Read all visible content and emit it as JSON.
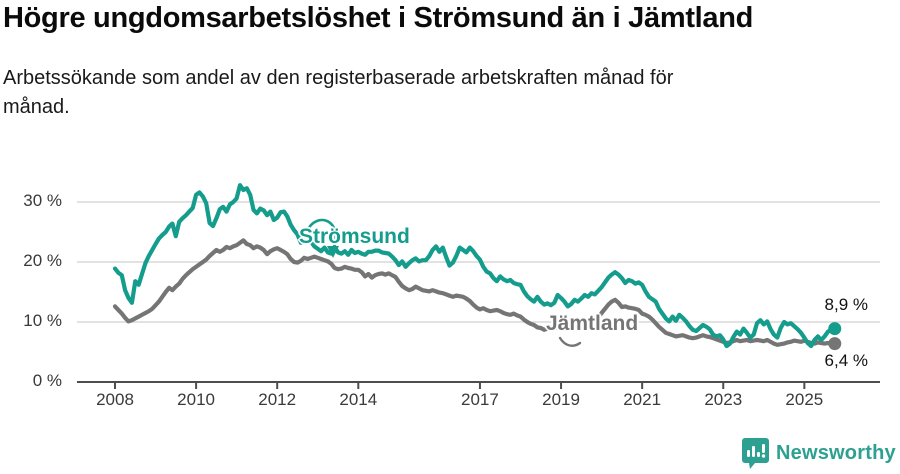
{
  "header": {
    "title": "Högre ungdomsarbetslöshet i Strömsund än i Jämtland",
    "subtitle_line1": "Arbetssökande som andel av den registerbaserade arbetskraften månad för",
    "subtitle_line2": "månad."
  },
  "chart_data": {
    "type": "line",
    "x_unit": "month",
    "x_start": "2008-01",
    "x_end": "2025-10",
    "ylim": [
      0,
      34
    ],
    "grid": "horizontal",
    "colors": {
      "grid": "#d9d9d9",
      "axis": "#4d4d4d",
      "tick_text": "#3a3a3a",
      "value_label_text": "#111111"
    },
    "y_ticks": [
      {
        "value": 0,
        "label": "0 %"
      },
      {
        "value": 10,
        "label": "10 %"
      },
      {
        "value": 20,
        "label": "20 %"
      },
      {
        "value": 30,
        "label": "30 %"
      }
    ],
    "x_ticks": [
      {
        "value": 2008,
        "label": "2008"
      },
      {
        "value": 2010,
        "label": "2010"
      },
      {
        "value": 2012,
        "label": "2012"
      },
      {
        "value": 2014,
        "label": "2014"
      },
      {
        "value": 2017,
        "label": "2017"
      },
      {
        "value": 2019,
        "label": "2019"
      },
      {
        "value": 2021,
        "label": "2021"
      },
      {
        "value": 2023,
        "label": "2023"
      },
      {
        "value": 2025,
        "label": "2025"
      }
    ],
    "series": [
      {
        "name": "Strömsund",
        "color": "#149c8c",
        "end_label": "8,9 %",
        "values": [
          18.9,
          18.2,
          17.8,
          15.3,
          14.0,
          13.2,
          16.8,
          16.2,
          18.0,
          19.8,
          21.0,
          22.0,
          23.0,
          23.9,
          24.5,
          25.0,
          25.9,
          26.4,
          24.3,
          26.7,
          27.3,
          27.8,
          28.4,
          29.0,
          31.2,
          31.6,
          30.9,
          29.8,
          26.5,
          26.0,
          27.3,
          28.8,
          29.2,
          28.4,
          29.6,
          30.0,
          30.6,
          32.8,
          32.0,
          32.3,
          31.2,
          28.7,
          28.1,
          28.9,
          28.6,
          27.8,
          28.4,
          27.0,
          27.4,
          28.3,
          28.4,
          27.6,
          26.2,
          25.3,
          24.6,
          23.2,
          23.8,
          24.4,
          23.4,
          22.6,
          22.2,
          21.8,
          22.4,
          21.6,
          21.4,
          22.5,
          21.6,
          21.4,
          21.8,
          21.2,
          22.0,
          21.5,
          21.7,
          21.4,
          21.2,
          21.7,
          21.7,
          21.9,
          21.9,
          21.6,
          21.5,
          21.4,
          20.9,
          20.3,
          19.5,
          20.1,
          19.2,
          19.8,
          20.3,
          20.6,
          20.1,
          20.3,
          20.3,
          21.0,
          22.0,
          22.6,
          21.7,
          22.4,
          20.8,
          19.4,
          19.9,
          21.0,
          22.4,
          22.0,
          21.6,
          22.4,
          21.8,
          21.0,
          20.4,
          19.2,
          18.4,
          18.1,
          17.3,
          16.8,
          17.6,
          17.1,
          16.8,
          17.0,
          16.5,
          16.3,
          16.2,
          15.1,
          14.3,
          13.8,
          13.4,
          14.2,
          13.4,
          12.9,
          13.1,
          12.8,
          13.2,
          14.5,
          14.0,
          13.4,
          12.6,
          13.0,
          13.7,
          13.4,
          13.9,
          14.5,
          14.2,
          14.8,
          14.6,
          15.2,
          15.8,
          16.6,
          17.4,
          17.9,
          18.3,
          17.9,
          17.3,
          16.5,
          17.0,
          16.8,
          16.4,
          16.6,
          16.2,
          15.1,
          14.2,
          13.8,
          13.4,
          12.2,
          11.4,
          10.6,
          10.1,
          10.9,
          10.2,
          11.2,
          10.7,
          10.1,
          9.3,
          8.7,
          8.5,
          9.0,
          9.5,
          9.2,
          8.8,
          7.9,
          7.6,
          7.8,
          7.1,
          6.0,
          6.4,
          7.5,
          8.4,
          7.9,
          8.9,
          8.2,
          7.4,
          7.9,
          9.8,
          10.3,
          9.6,
          10.1,
          8.8,
          7.9,
          7.4,
          9.0,
          10.0,
          9.6,
          9.8,
          9.3,
          8.8,
          8.2,
          7.4,
          6.5,
          6.0,
          7.0,
          7.6,
          7.0,
          7.6,
          8.4,
          8.7,
          8.9
        ]
      },
      {
        "name": "Jämtland",
        "color": "#757575",
        "end_label": "6,4 %",
        "values": [
          12.6,
          12.0,
          11.4,
          10.7,
          10.1,
          10.3,
          10.6,
          10.9,
          11.2,
          11.5,
          11.8,
          12.2,
          12.8,
          13.4,
          14.2,
          15.0,
          15.7,
          15.3,
          15.9,
          16.4,
          17.2,
          17.8,
          18.3,
          18.8,
          19.2,
          19.6,
          20.0,
          20.4,
          21.0,
          21.5,
          22.0,
          21.7,
          22.0,
          22.5,
          22.3,
          22.6,
          22.8,
          23.2,
          23.6,
          23.0,
          22.8,
          22.3,
          22.6,
          22.4,
          22.0,
          21.3,
          21.8,
          22.1,
          22.3,
          22.0,
          21.7,
          21.3,
          20.5,
          20.0,
          19.9,
          20.2,
          20.7,
          20.5,
          20.7,
          20.9,
          20.7,
          20.5,
          20.3,
          20.1,
          19.7,
          19.0,
          18.8,
          18.9,
          19.2,
          19.0,
          18.9,
          18.7,
          18.7,
          18.3,
          17.6,
          18.0,
          17.4,
          17.8,
          18.0,
          18.1,
          17.9,
          18.1,
          17.8,
          17.5,
          16.7,
          16.0,
          15.6,
          15.3,
          15.5,
          15.9,
          15.6,
          15.3,
          15.2,
          15.1,
          15.3,
          15.1,
          14.9,
          14.8,
          14.6,
          14.4,
          14.2,
          14.4,
          14.3,
          14.2,
          13.9,
          13.5,
          12.9,
          12.4,
          12.1,
          12.3,
          12.0,
          11.8,
          11.9,
          12.0,
          11.8,
          11.5,
          11.3,
          11.2,
          11.4,
          11.1,
          10.9,
          10.4,
          10.0,
          9.7,
          9.5,
          9.1,
          9.0,
          8.7,
          8.9,
          9.1,
          9.0,
          9.2,
          9.0,
          8.9,
          9.0,
          9.2,
          9.1,
          9.3,
          9.4,
          9.3,
          9.5,
          9.7,
          10.2,
          10.8,
          11.5,
          12.2,
          12.9,
          13.4,
          13.7,
          13.2,
          12.5,
          12.6,
          12.4,
          12.3,
          12.2,
          12.0,
          11.4,
          11.2,
          10.9,
          10.4,
          9.8,
          9.2,
          8.7,
          8.2,
          8.0,
          7.8,
          7.6,
          7.7,
          7.8,
          7.6,
          7.4,
          7.3,
          7.4,
          7.6,
          7.8,
          7.6,
          7.5,
          7.3,
          7.1,
          6.9,
          6.7,
          6.5,
          6.6,
          6.8,
          7.0,
          6.8,
          6.9,
          7.0,
          6.8,
          6.9,
          7.0,
          6.9,
          6.8,
          7.0,
          6.7,
          6.4,
          6.2,
          6.3,
          6.4,
          6.6,
          6.7,
          6.9,
          6.8,
          6.7,
          6.9,
          6.7,
          6.5,
          6.4,
          6.6,
          6.5,
          6.4,
          6.5,
          6.4,
          6.4
        ]
      }
    ]
  },
  "footer": {
    "brand": "Newsworthy",
    "brand_color": "#2ea091"
  }
}
